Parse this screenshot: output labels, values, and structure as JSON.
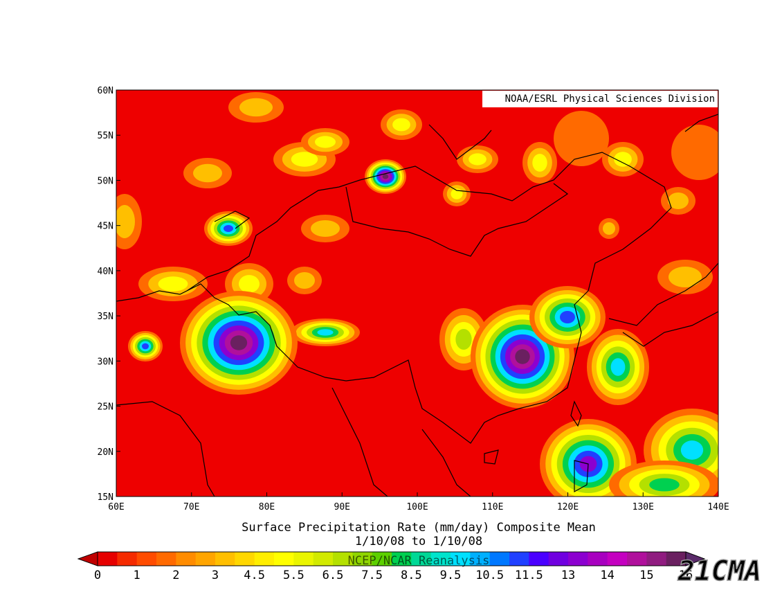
{
  "chart_data": {
    "type": "contour-map",
    "credit": "NOAA/ESRL Physical Sciences Division",
    "title": "Surface Precipitation Rate (mm/day) Composite Mean",
    "subtitle": "1/10/08  to 1/10/08",
    "source": "NCEP/NCAR Reanalysis",
    "watermark": "21CMA",
    "xlim": [
      60,
      140
    ],
    "ylim": [
      15,
      60
    ],
    "xticks": [
      {
        "value": 60,
        "label": "60E"
      },
      {
        "value": 70,
        "label": "70E"
      },
      {
        "value": 80,
        "label": "80E"
      },
      {
        "value": 90,
        "label": "90E"
      },
      {
        "value": 100,
        "label": "100E"
      },
      {
        "value": 110,
        "label": "110E"
      },
      {
        "value": 120,
        "label": "120E"
      },
      {
        "value": 130,
        "label": "130E"
      },
      {
        "value": 140,
        "label": "140E"
      }
    ],
    "yticks": [
      {
        "value": 15,
        "label": "15N"
      },
      {
        "value": 20,
        "label": "20N"
      },
      {
        "value": 25,
        "label": "25N"
      },
      {
        "value": 30,
        "label": "30N"
      },
      {
        "value": 35,
        "label": "35N"
      },
      {
        "value": 40,
        "label": "40N"
      },
      {
        "value": 45,
        "label": "45N"
      },
      {
        "value": 50,
        "label": "50N"
      },
      {
        "value": 55,
        "label": "55N"
      },
      {
        "value": 60,
        "label": "60N"
      }
    ],
    "colorbar": {
      "labels": [
        0,
        1,
        2,
        3,
        4.5,
        5.5,
        6.5,
        7.5,
        8.5,
        9.5,
        10.5,
        11.5,
        13,
        14,
        15,
        16
      ],
      "colors": [
        "#e60000",
        "#f52b00",
        "#ff4c00",
        "#ff6a00",
        "#ff8c00",
        "#ffa500",
        "#ffbf00",
        "#ffd700",
        "#ffee00",
        "#ffff00",
        "#eaf500",
        "#d2ea00",
        "#b4e000",
        "#90d600",
        "#5cd000",
        "#00d050",
        "#00d896",
        "#00e4cc",
        "#00e0ff",
        "#00b0ff",
        "#0078ff",
        "#2040ff",
        "#4a00ff",
        "#7000e0",
        "#8c00d0",
        "#a800c0",
        "#c400c0",
        "#b0109c",
        "#901c80",
        "#6a2060"
      ],
      "under_color": "#c00000",
      "over_color": "#5a2a6a"
    }
  }
}
